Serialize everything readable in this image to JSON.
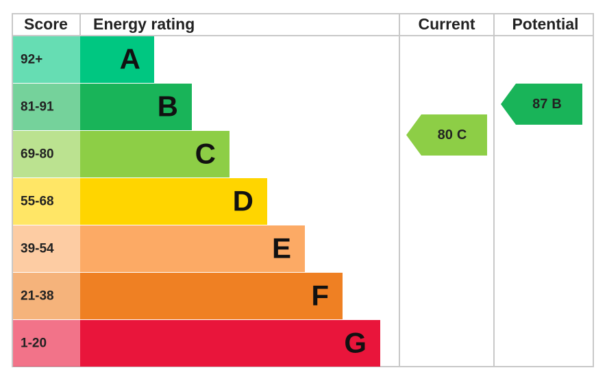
{
  "headers": {
    "score": "Score",
    "rating": "Energy rating",
    "current": "Current",
    "potential": "Potential"
  },
  "bands": [
    {
      "range": "92+",
      "letter": "A",
      "color": "#00c781"
    },
    {
      "range": "81-91",
      "letter": "B",
      "color": "#19b459"
    },
    {
      "range": "69-80",
      "letter": "C",
      "color": "#8dce46"
    },
    {
      "range": "55-68",
      "letter": "D",
      "color": "#ffd500"
    },
    {
      "range": "39-54",
      "letter": "E",
      "color": "#fcaa65"
    },
    {
      "range": "21-38",
      "letter": "F",
      "color": "#ef8023"
    },
    {
      "range": "1-20",
      "letter": "G",
      "color": "#e9153b"
    }
  ],
  "current": {
    "score": 80,
    "rating": "C"
  },
  "potential": {
    "score": 87,
    "rating": "B"
  }
}
